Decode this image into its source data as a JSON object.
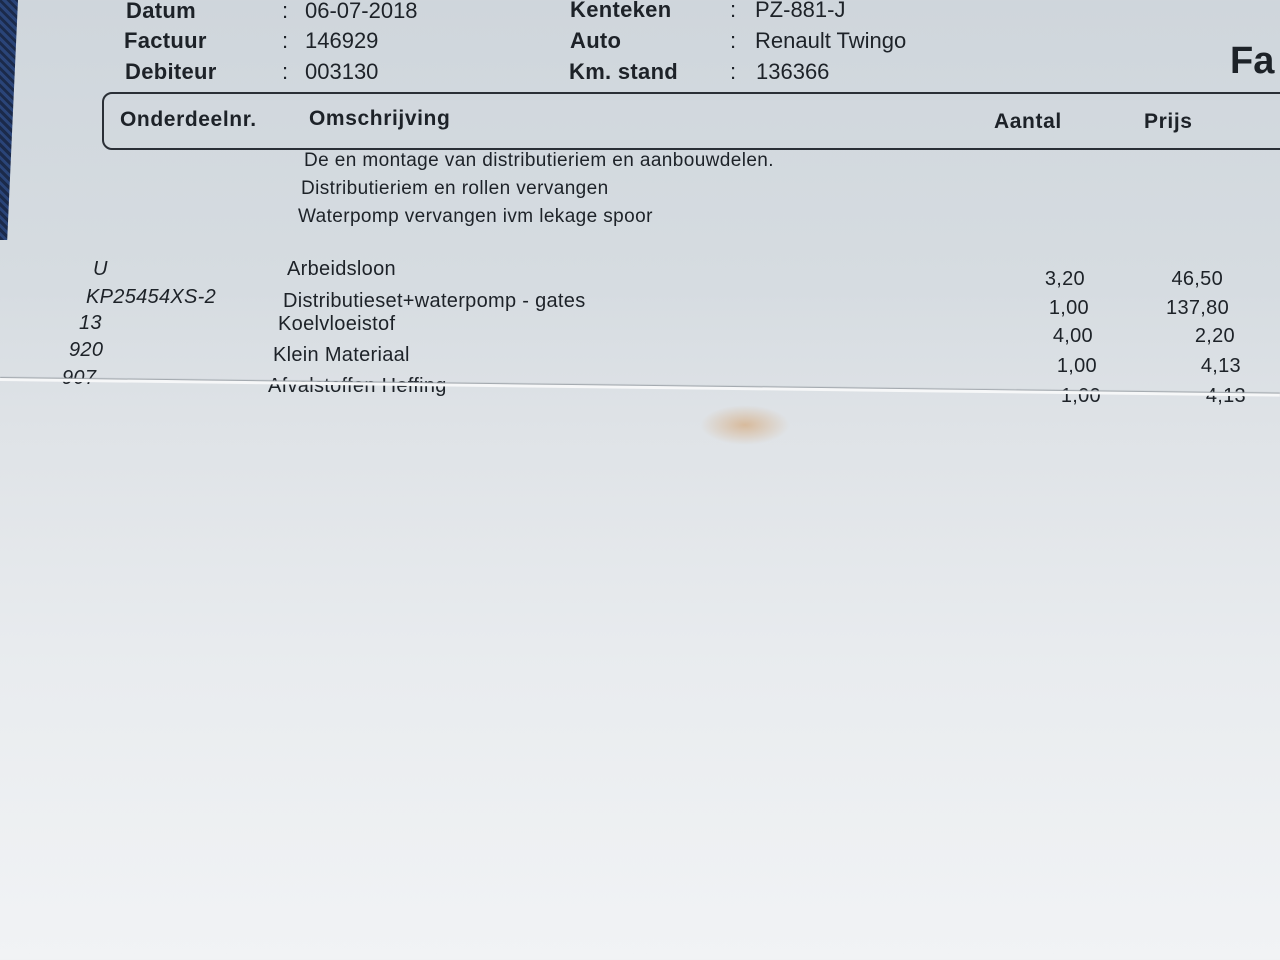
{
  "header": {
    "fields_left": [
      {
        "label": "Datum",
        "value": "06-07-2018"
      },
      {
        "label": "Factuur",
        "value": "146929"
      },
      {
        "label": "Debiteur",
        "value": "003130"
      }
    ],
    "fields_right": [
      {
        "label": "Kenteken",
        "value": "PZ-881-J"
      },
      {
        "label": "Auto",
        "value": "Renault Twingo"
      },
      {
        "label": "Km. stand",
        "value": "136366"
      }
    ],
    "separator": ":",
    "doc_title_partial": "Fa"
  },
  "table": {
    "columns": [
      "Onderdeelnr.",
      "Omschrijving",
      "Aantal",
      "Prijs"
    ],
    "notes": [
      "De en montage van distributieriem en aanbouwdelen.",
      "Distributieriem en rollen vervangen",
      "Waterpomp vervangen ivm lekage spoor"
    ],
    "rows": [
      {
        "code": "U",
        "description": "Arbeidsloon",
        "qty": "3,20",
        "price": "46,50"
      },
      {
        "code": "KP25454XS-2",
        "description": "Distributieset+waterpomp - gates",
        "qty": "1,00",
        "price": "137,80"
      },
      {
        "code": "13",
        "description": "Koelvloeistof",
        "qty": "4,00",
        "price": "2,20"
      },
      {
        "code": "920",
        "description": "Klein Materiaal",
        "qty": "1,00",
        "price": "4,13"
      },
      {
        "code": "907",
        "description": "Afvalstoffen Heffing",
        "qty": "1,00",
        "price": "4,13"
      }
    ]
  }
}
